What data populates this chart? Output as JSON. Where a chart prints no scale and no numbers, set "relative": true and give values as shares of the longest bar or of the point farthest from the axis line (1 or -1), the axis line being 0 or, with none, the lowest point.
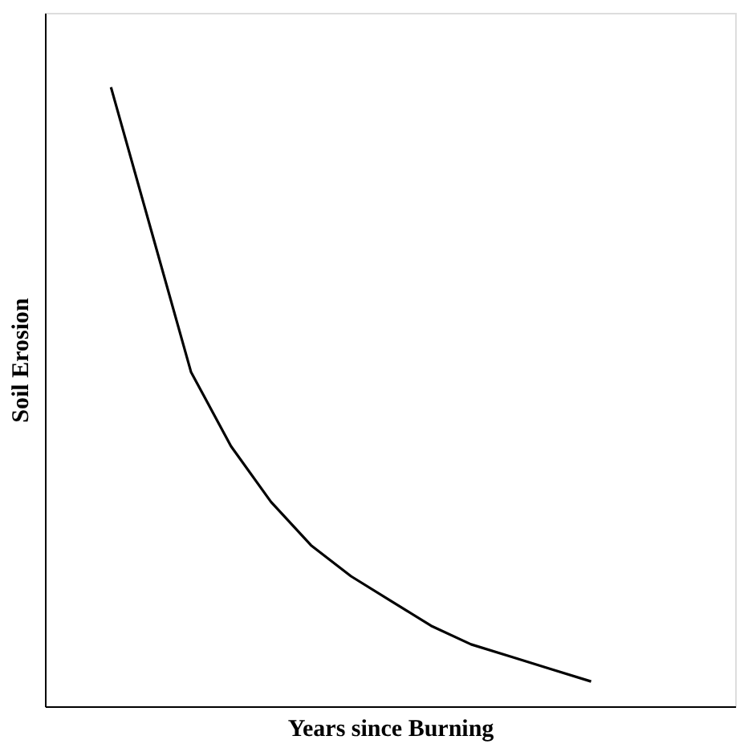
{
  "chart_data": {
    "type": "line",
    "xlabel": "Years since Burning",
    "ylabel": "Soil Erosion",
    "relative": true,
    "tick_labels": false,
    "grid": false,
    "marker": "none",
    "line_style": "solid",
    "categories": [
      null,
      null,
      null,
      null,
      null,
      null,
      null,
      null,
      null,
      null,
      null,
      null,
      null
    ],
    "series": [
      {
        "color": "#000000",
        "values": [
          1,
          0.77,
          0.54,
          0.42,
          0.33,
          0.26,
          0.21,
          0.17,
          0.13,
          0.1,
          0.08,
          0.06,
          0.04
        ]
      }
    ]
  }
}
